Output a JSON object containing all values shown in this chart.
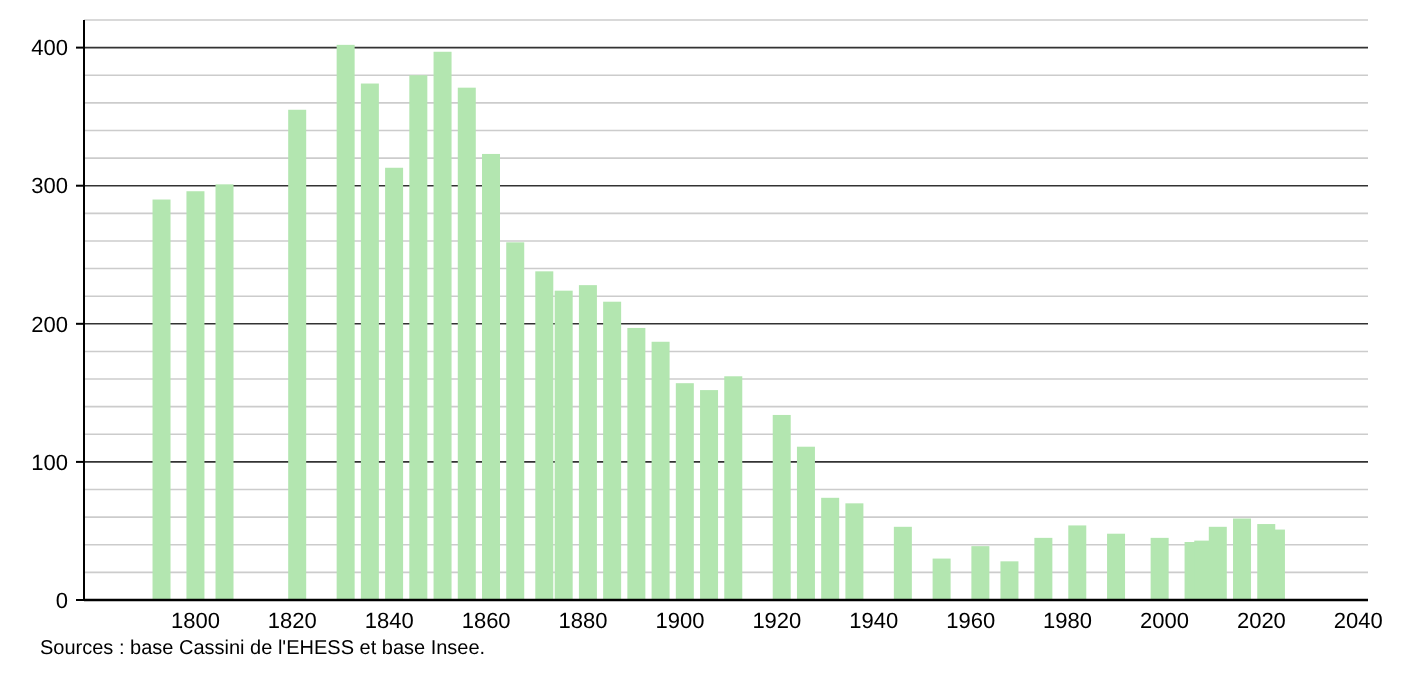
{
  "chart_data": {
    "type": "bar",
    "x": [
      1793,
      1800,
      1806,
      1821,
      1831,
      1836,
      1841,
      1846,
      1851,
      1856,
      1861,
      1866,
      1872,
      1876,
      1881,
      1886,
      1891,
      1896,
      1901,
      1906,
      1911,
      1921,
      1926,
      1931,
      1936,
      1946,
      1954,
      1962,
      1968,
      1975,
      1982,
      1990,
      1999,
      2006,
      2008,
      2011,
      2016,
      2021,
      2023
    ],
    "values": [
      290,
      296,
      301,
      355,
      402,
      374,
      313,
      380,
      397,
      371,
      323,
      259,
      238,
      224,
      228,
      216,
      197,
      187,
      157,
      152,
      162,
      134,
      111,
      74,
      70,
      53,
      30,
      39,
      28,
      45,
      54,
      48,
      45,
      42,
      43,
      53,
      59,
      55,
      51
    ],
    "color": "#b3e6b0",
    "xlim": [
      1777,
      2042
    ],
    "xticks": [
      1800,
      1820,
      1840,
      1860,
      1880,
      1900,
      1920,
      1940,
      1960,
      1980,
      2000,
      2020,
      2040
    ],
    "ylim": [
      0,
      420
    ],
    "yticks": [
      0,
      {
        "value": 20,
        "label": null
      },
      {
        "value": 40,
        "label": null
      },
      {
        "value": 60,
        "label": null
      },
      {
        "value": 80,
        "label": null
      },
      100,
      {
        "value": 120,
        "label": null
      },
      {
        "value": 140,
        "label": null
      },
      {
        "value": 160,
        "label": null
      },
      {
        "value": 180,
        "label": null
      },
      200,
      {
        "value": 220,
        "label": null
      },
      {
        "value": 240,
        "label": null
      },
      {
        "value": 260,
        "label": null
      },
      {
        "value": 280,
        "label": null
      },
      300,
      {
        "value": 320,
        "label": null
      },
      {
        "value": 340,
        "label": null
      },
      {
        "value": 360,
        "label": null
      },
      {
        "value": 380,
        "label": null
      },
      400,
      {
        "value": 420,
        "label": null
      }
    ],
    "grid": true,
    "annotations": [
      "Sources : base Cassini de l'EHESS et base Insee."
    ]
  }
}
